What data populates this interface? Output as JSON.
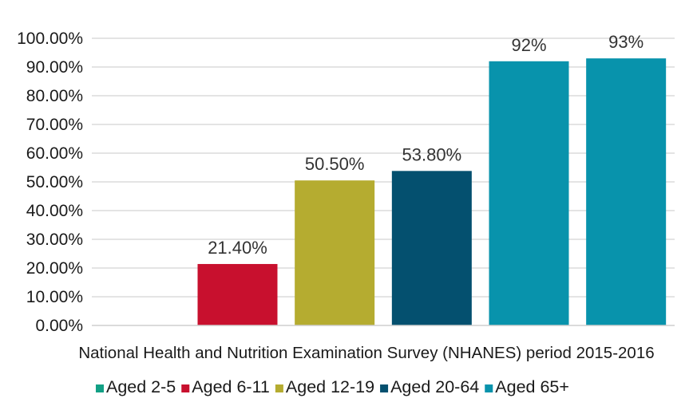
{
  "chart_data": {
    "type": "bar",
    "xlabel": "National Health and Nutrition Examination Survey (NHANES) period 2015-2016",
    "ylim": [
      0,
      100
    ],
    "y_ticks": [
      "0.00%",
      "10.00%",
      "20.00%",
      "30.00%",
      "40.00%",
      "50.00%",
      "60.00%",
      "70.00%",
      "80.00%",
      "90.00%",
      "100.00%"
    ],
    "grid": true,
    "legend_position": "bottom",
    "series": [
      {
        "name": "Aged 2-5",
        "value": 0,
        "label": "",
        "color": "#12a085"
      },
      {
        "name": "Aged 6-11",
        "value": 21.4,
        "label": "21.40%",
        "color": "#c8102e"
      },
      {
        "name": "Aged 12-19",
        "value": 50.5,
        "label": "50.50%",
        "color": "#b5ac30"
      },
      {
        "name": "Aged 20-64",
        "value": 53.8,
        "label": "53.80%",
        "color": "#04506f"
      },
      {
        "name": "Aged 65+",
        "value": 92,
        "label": "92%",
        "color": "#0893ac"
      },
      {
        "name": "",
        "value": 93,
        "label": "93%",
        "color": "#0893ac"
      }
    ]
  }
}
